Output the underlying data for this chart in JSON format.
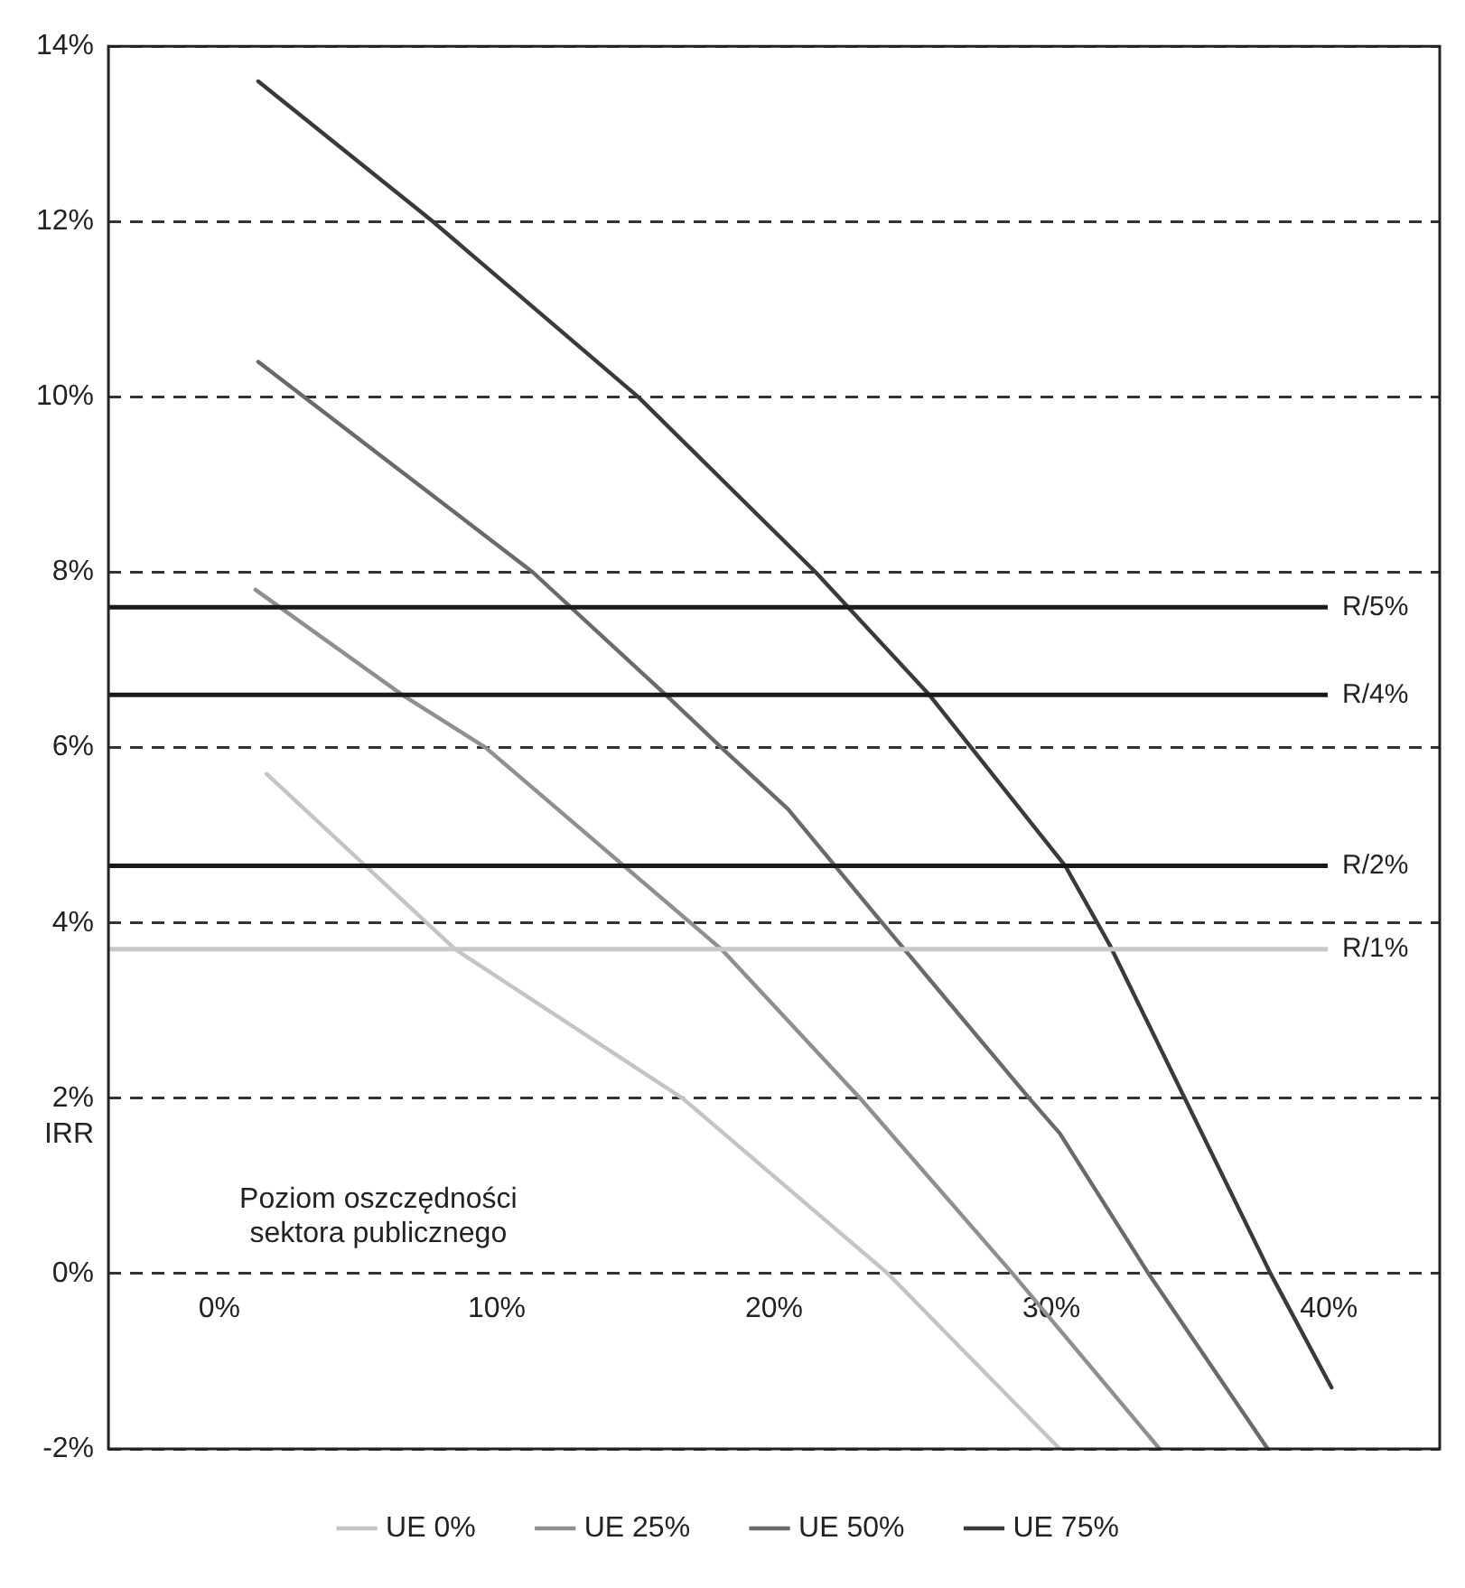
{
  "chart_data": {
    "type": "line",
    "xlabel": "Poziom oszczędności sektora publicznego",
    "ylabel": "IRR",
    "xlim": [
      -4,
      44
    ],
    "xticks": [
      {
        "value": 0,
        "label": "0%"
      },
      {
        "value": 10,
        "label": "10%"
      },
      {
        "value": 20,
        "label": "20%"
      },
      {
        "value": 30,
        "label": "30%"
      },
      {
        "value": 40,
        "label": "40%"
      }
    ],
    "ylim": [
      -2,
      14
    ],
    "yticks": [
      {
        "value": -2,
        "label": "-2%"
      },
      {
        "value": 0,
        "label": "0%"
      },
      {
        "value": 2,
        "label": "2%"
      },
      {
        "value": 4,
        "label": "4%"
      },
      {
        "value": 6,
        "label": "6%"
      },
      {
        "value": 8,
        "label": "8%"
      },
      {
        "value": 10,
        "label": "10%"
      },
      {
        "value": 12,
        "label": "12%"
      },
      {
        "value": 14,
        "label": "14%"
      }
    ],
    "grid": "y",
    "legend": "bottom",
    "marker": "none",
    "line_style": "solid",
    "series": [
      {
        "name": "UE 0%",
        "color": "#c4c4c4",
        "x": [
          1.7,
          8.5,
          16.7,
          24.1,
          30.3
        ],
        "values": [
          5.7,
          3.7,
          2,
          0,
          -2
        ]
      },
      {
        "name": "UE 25%",
        "color": "#8f8f8f",
        "x": [
          1.3,
          6.6,
          9.6,
          18.1,
          23.1,
          28.6,
          33.9
        ],
        "values": [
          7.8,
          6.6,
          6,
          3.7,
          2,
          0,
          -2
        ]
      },
      {
        "name": "UE 50%",
        "color": "#6a6a6a",
        "x": [
          1.4,
          11.3,
          16.1,
          18.1,
          20.5,
          23.9,
          29.2,
          30.3,
          33.5,
          37.8
        ],
        "values": [
          10.4,
          8,
          6.6,
          6,
          5.3,
          4,
          2,
          1.6,
          0,
          -2
        ]
      },
      {
        "name": "UE 75%",
        "color": "#3a3a3a",
        "x": [
          1.4,
          7.7,
          15.1,
          21.5,
          25.6,
          30.5,
          32.1,
          37.9,
          40.1
        ],
        "values": [
          13.6,
          12,
          10,
          8,
          6.6,
          4.65,
          3.75,
          0,
          -1.3
        ]
      }
    ],
    "ref_lines": [
      {
        "axis": "y",
        "value": 7.6,
        "label": "R/5%",
        "color": "#1a1a1a"
      },
      {
        "axis": "y",
        "value": 6.6,
        "label": "R/4%",
        "color": "#1a1a1a"
      },
      {
        "axis": "y",
        "value": 4.65,
        "label": "R/2%",
        "color": "#1a1a1a"
      },
      {
        "axis": "y",
        "value": 3.7,
        "label": "R/1%",
        "color": "#c8c8c8"
      }
    ]
  }
}
